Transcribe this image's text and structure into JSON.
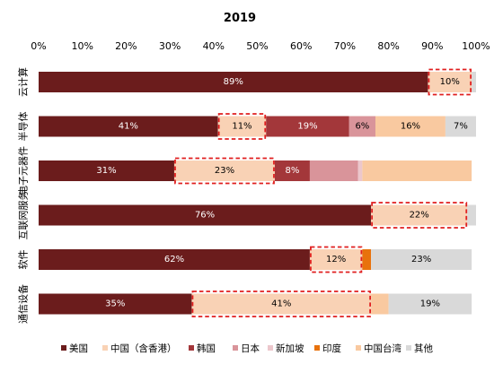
{
  "chart_data": {
    "type": "bar",
    "orientation": "horizontal",
    "stacked": true,
    "title": "2019",
    "xlim": [
      0,
      100
    ],
    "x_ticks": [
      "0%",
      "10%",
      "20%",
      "30%",
      "40%",
      "50%",
      "60%",
      "70%",
      "80%",
      "90%",
      "100%"
    ],
    "grid": false,
    "legend_position": "bottom",
    "categories": [
      "云计算",
      "半导体",
      "电子元器件",
      "互联网服务",
      "软件",
      "通信设备"
    ],
    "series": [
      {
        "name": "美国",
        "color": "#6b1c1c",
        "values": [
          89,
          41,
          31,
          76,
          62,
          35
        ],
        "labels": [
          "89%",
          "41%",
          "31%",
          "76%",
          "62%",
          "35%"
        ]
      },
      {
        "name": "中国（含香港）",
        "color": "#f9d2b5",
        "values": [
          10,
          11,
          23,
          22,
          12,
          41
        ],
        "labels": [
          "10%",
          "11%",
          "23%",
          "22%",
          "12%",
          "41%"
        ],
        "highlight": true
      },
      {
        "name": "韩国",
        "color": "#a3373a",
        "values": [
          0,
          19,
          8,
          0,
          0,
          0
        ],
        "labels": [
          "",
          "19%",
          "8%",
          "",
          "",
          ""
        ]
      },
      {
        "name": "日本",
        "color": "#d9949a",
        "values": [
          0,
          6,
          11,
          0,
          0,
          0
        ],
        "labels": [
          "",
          "6%",
          "",
          "",
          "",
          ""
        ]
      },
      {
        "name": "新加坡",
        "color": "#ecc7cc",
        "values": [
          0,
          0,
          1,
          0,
          0,
          0
        ],
        "labels": [
          "",
          "",
          "",
          "",
          "",
          ""
        ]
      },
      {
        "name": "印度",
        "color": "#e8720c",
        "values": [
          0,
          0,
          0,
          0,
          2,
          0
        ],
        "labels": [
          "",
          "",
          "",
          "",
          "",
          ""
        ]
      },
      {
        "name": "中国台湾",
        "color": "#f9c9a0",
        "values": [
          0,
          16,
          25,
          0,
          0,
          4
        ],
        "labels": [
          "",
          "16%",
          "",
          "",
          "",
          ""
        ]
      },
      {
        "name": "其他",
        "color": "#d9d9d9",
        "values": [
          1,
          7,
          0,
          2,
          23,
          19
        ],
        "labels": [
          "",
          "7%",
          "",
          "",
          "23%",
          "19%"
        ]
      }
    ]
  }
}
